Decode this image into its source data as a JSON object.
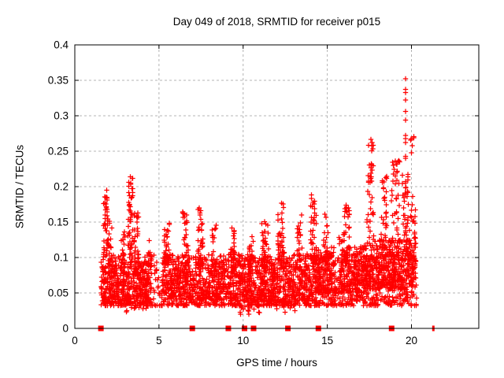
{
  "chart_data": {
    "type": "scatter",
    "title": "Day 049 of 2018, SRMTID for receiver p015",
    "xlabel": "GPS time / hours",
    "ylabel": "SRMTID / TECUs",
    "xlim": [
      0,
      24
    ],
    "ylim": [
      0,
      0.4
    ],
    "xticks": [
      0,
      5,
      10,
      15,
      20
    ],
    "xtick_labels": [
      "0",
      "5",
      "10",
      "15",
      "20"
    ],
    "yticks": [
      0,
      0.05,
      0.1,
      0.15,
      0.2,
      0.25,
      0.3,
      0.35,
      0.4
    ],
    "ytick_labels": [
      "0",
      "0.05",
      "0.1",
      "0.15",
      "0.2",
      "0.25",
      "0.3",
      "0.35",
      "0.4"
    ],
    "grid": "dashed major both",
    "legend": "none",
    "marker": "plus",
    "marker_color": "#ff0000",
    "grid_color": "#b4b4b4",
    "axis_color": "#000000",
    "background_color": "#ffffff",
    "data_time_span_hours": [
      1.55,
      20.3
    ],
    "seed": 49,
    "spike_points": [
      [
        19.65,
        0.352
      ],
      [
        19.64,
        0.337
      ],
      [
        19.66,
        0.333
      ],
      [
        19.65,
        0.322
      ],
      [
        19.66,
        0.306
      ],
      [
        19.65,
        0.294
      ],
      [
        19.64,
        0.272
      ],
      [
        19.66,
        0.268
      ],
      [
        19.65,
        0.262
      ],
      [
        19.64,
        0.243
      ],
      [
        19.66,
        0.24
      ]
    ],
    "clusters": [
      {
        "x0": 1.55,
        "x1": 20.3,
        "n": 1500,
        "y0": 0.032,
        "y1": 0.105,
        "p": 1.6
      },
      {
        "x0": 1.55,
        "x1": 4.4,
        "n": 320,
        "y0": 0.035,
        "y1": 0.095,
        "p": 1.4
      },
      {
        "x0": 5.2,
        "x1": 9.2,
        "n": 300,
        "y0": 0.04,
        "y1": 0.1,
        "p": 1.4
      },
      {
        "x0": 9.2,
        "x1": 14.2,
        "n": 420,
        "y0": 0.038,
        "y1": 0.105,
        "p": 1.4
      },
      {
        "x0": 14.2,
        "x1": 17.2,
        "n": 320,
        "y0": 0.05,
        "y1": 0.115,
        "p": 1.4
      },
      {
        "x0": 17.2,
        "x1": 20.25,
        "n": 380,
        "y0": 0.055,
        "y1": 0.125,
        "p": 1.3
      },
      {
        "x0": 9.8,
        "x1": 11.3,
        "n": 22,
        "y0": 0.018,
        "y1": 0.04,
        "p": 1.0
      },
      {
        "x0": 3.0,
        "x1": 4.6,
        "n": 16,
        "y0": 0.022,
        "y1": 0.04,
        "p": 1.0
      },
      {
        "x0": 12.0,
        "x1": 13.2,
        "n": 12,
        "y0": 0.02,
        "y1": 0.04,
        "p": 1.0
      },
      {
        "x0": 1.7,
        "x1": 1.95,
        "n": 38,
        "y0": 0.1,
        "y1": 0.197,
        "p": 1.2
      },
      {
        "x0": 1.95,
        "x1": 2.2,
        "n": 22,
        "y0": 0.08,
        "y1": 0.155,
        "p": 1.2
      },
      {
        "x0": 2.75,
        "x1": 3.0,
        "n": 18,
        "y0": 0.09,
        "y1": 0.14,
        "p": 1.2
      },
      {
        "x0": 3.15,
        "x1": 3.45,
        "n": 52,
        "y0": 0.1,
        "y1": 0.215,
        "p": 1.1
      },
      {
        "x0": 3.5,
        "x1": 3.8,
        "n": 26,
        "y0": 0.09,
        "y1": 0.165,
        "p": 1.2
      },
      {
        "x0": 4.35,
        "x1": 4.55,
        "n": 14,
        "y0": 0.08,
        "y1": 0.125,
        "p": 1.2
      },
      {
        "x0": 5.3,
        "x1": 5.65,
        "n": 32,
        "y0": 0.09,
        "y1": 0.155,
        "p": 1.2
      },
      {
        "x0": 6.4,
        "x1": 6.75,
        "n": 30,
        "y0": 0.09,
        "y1": 0.165,
        "p": 1.2
      },
      {
        "x0": 7.3,
        "x1": 7.6,
        "n": 36,
        "y0": 0.09,
        "y1": 0.172,
        "p": 1.2
      },
      {
        "x0": 8.1,
        "x1": 8.4,
        "n": 26,
        "y0": 0.08,
        "y1": 0.15,
        "p": 1.2
      },
      {
        "x0": 9.25,
        "x1": 9.55,
        "n": 26,
        "y0": 0.08,
        "y1": 0.142,
        "p": 1.2
      },
      {
        "x0": 10.3,
        "x1": 10.65,
        "n": 22,
        "y0": 0.08,
        "y1": 0.132,
        "p": 1.2
      },
      {
        "x0": 11.1,
        "x1": 11.5,
        "n": 30,
        "y0": 0.08,
        "y1": 0.152,
        "p": 1.2
      },
      {
        "x0": 12.05,
        "x1": 12.45,
        "n": 40,
        "y0": 0.09,
        "y1": 0.18,
        "p": 1.2
      },
      {
        "x0": 13.2,
        "x1": 13.5,
        "n": 26,
        "y0": 0.08,
        "y1": 0.16,
        "p": 1.2
      },
      {
        "x0": 14.0,
        "x1": 14.35,
        "n": 40,
        "y0": 0.09,
        "y1": 0.19,
        "p": 1.1
      },
      {
        "x0": 14.75,
        "x1": 15.05,
        "n": 22,
        "y0": 0.08,
        "y1": 0.167,
        "p": 1.2
      },
      {
        "x0": 15.7,
        "x1": 16.0,
        "n": 20,
        "y0": 0.08,
        "y1": 0.135,
        "p": 1.2
      },
      {
        "x0": 16.0,
        "x1": 16.35,
        "n": 34,
        "y0": 0.09,
        "y1": 0.186,
        "p": 1.2
      },
      {
        "x0": 17.35,
        "x1": 17.8,
        "n": 42,
        "y0": 0.11,
        "y1": 0.273,
        "p": 1.1
      },
      {
        "x0": 18.15,
        "x1": 18.55,
        "n": 36,
        "y0": 0.1,
        "y1": 0.222,
        "p": 1.2
      },
      {
        "x0": 18.8,
        "x1": 19.3,
        "n": 46,
        "y0": 0.1,
        "y1": 0.238,
        "p": 1.2
      },
      {
        "x0": 19.45,
        "x1": 19.8,
        "n": 40,
        "y0": 0.1,
        "y1": 0.232,
        "p": 1.1
      },
      {
        "x0": 19.8,
        "x1": 20.25,
        "n": 30,
        "y0": 0.07,
        "y1": 0.2,
        "p": 1.2
      },
      {
        "x0": 19.9,
        "x1": 20.15,
        "n": 6,
        "y0": 0.24,
        "y1": 0.276,
        "p": 1.0
      }
    ],
    "axis_marker_squares_hours": [
      1.55,
      6.98,
      9.12,
      10.08,
      10.62,
      12.66,
      14.47,
      18.82
    ],
    "axis_marker_thin_hours": [
      21.3
    ]
  }
}
